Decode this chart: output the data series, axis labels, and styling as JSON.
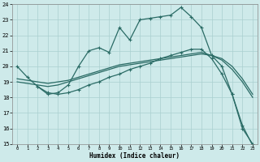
{
  "xlabel": "Humidex (Indice chaleur)",
  "background_color": "#ceeaea",
  "grid_color": "#aacfcf",
  "line_color": "#2a6b65",
  "xlim": [
    -0.5,
    23.5
  ],
  "ylim": [
    15,
    24
  ],
  "xticks": [
    0,
    1,
    2,
    3,
    4,
    5,
    6,
    7,
    8,
    9,
    10,
    11,
    12,
    13,
    14,
    15,
    16,
    17,
    18,
    19,
    20,
    21,
    22,
    23
  ],
  "yticks": [
    15,
    16,
    17,
    18,
    19,
    20,
    21,
    22,
    23,
    24
  ],
  "series1_x": [
    0,
    1,
    2,
    3,
    4,
    5,
    6,
    7,
    8,
    9,
    10,
    11,
    12,
    13,
    14,
    15,
    16,
    17,
    18,
    19,
    20,
    21,
    22,
    23
  ],
  "series1_y": [
    20.0,
    19.3,
    18.7,
    18.2,
    18.3,
    18.8,
    20.0,
    21.0,
    21.2,
    20.9,
    22.5,
    21.7,
    23.0,
    23.1,
    23.2,
    23.3,
    23.8,
    23.2,
    22.5,
    20.7,
    20.0,
    18.2,
    16.0,
    15.0
  ],
  "series2_x": [
    0,
    1,
    2,
    3,
    4,
    5,
    6,
    7,
    8,
    9,
    10,
    11,
    12,
    13,
    14,
    15,
    16,
    17,
    18,
    19,
    20,
    21,
    22,
    23
  ],
  "series2_y": [
    19.0,
    18.9,
    18.8,
    18.7,
    18.8,
    19.0,
    19.2,
    19.4,
    19.6,
    19.8,
    20.0,
    20.1,
    20.2,
    20.3,
    20.4,
    20.5,
    20.6,
    20.7,
    20.8,
    20.7,
    20.5,
    20.0,
    19.2,
    18.2
  ],
  "series3_x": [
    0,
    1,
    2,
    3,
    4,
    5,
    6,
    7,
    8,
    9,
    10,
    11,
    12,
    13,
    14,
    15,
    16,
    17,
    18,
    19,
    20,
    21,
    22,
    23
  ],
  "series3_y": [
    19.2,
    19.1,
    19.0,
    18.9,
    19.0,
    19.1,
    19.3,
    19.5,
    19.7,
    19.9,
    20.1,
    20.2,
    20.3,
    20.4,
    20.5,
    20.6,
    20.7,
    20.8,
    20.9,
    20.7,
    20.4,
    19.8,
    19.0,
    18.0
  ],
  "series4_x": [
    2,
    3,
    4,
    5,
    6,
    7,
    8,
    9,
    10,
    11,
    12,
    13,
    14,
    15,
    16,
    17,
    18,
    19,
    20,
    21,
    22,
    23
  ],
  "series4_y": [
    18.7,
    18.3,
    18.2,
    18.3,
    18.5,
    18.8,
    19.0,
    19.3,
    19.5,
    19.8,
    20.0,
    20.2,
    20.5,
    20.7,
    20.9,
    21.1,
    21.1,
    20.5,
    19.5,
    18.2,
    16.2,
    14.9
  ]
}
